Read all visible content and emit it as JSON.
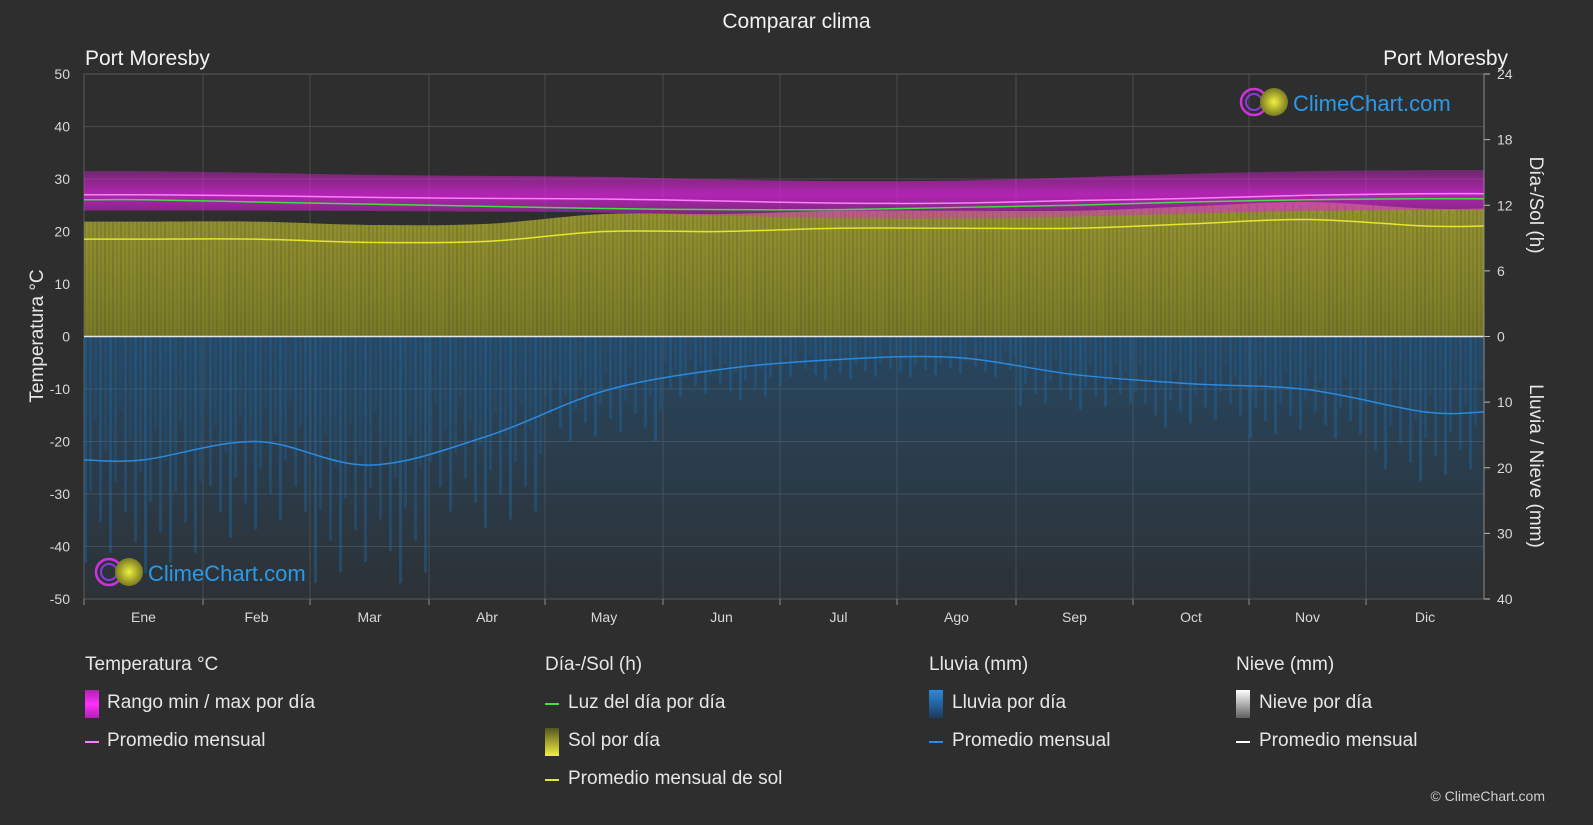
{
  "title": "Comparar clima",
  "city_left": "Port Moresby",
  "city_right": "Port Moresby",
  "watermark": "ClimeChart.com",
  "copyright": "© ClimeChart.com",
  "colors": {
    "temp_range": "#e020e0",
    "temp_avg": "#ff80ff",
    "daylight": "#44dd44",
    "sun_fill": "#8c8c2a",
    "sun_avg": "#e6e62a",
    "rain_fill": "#1e6aa8",
    "rain_avg": "#2a8ae0",
    "snow_avg": "#ffffff",
    "brand": "#2a9ae8"
  },
  "chart_data": {
    "type": "line",
    "months": [
      "Ene",
      "Feb",
      "Mar",
      "Abr",
      "May",
      "Jun",
      "Jul",
      "Ago",
      "Sep",
      "Oct",
      "Nov",
      "Dic"
    ],
    "y_left": {
      "label": "Temperatura °C",
      "range": [
        -50,
        50
      ],
      "ticks": [
        "50",
        "40",
        "30",
        "20",
        "10",
        "0",
        "-10",
        "-20",
        "-30",
        "-40",
        "-50"
      ]
    },
    "y_right_top": {
      "label": "Día-/Sol (h)",
      "range": [
        0,
        24
      ],
      "ticks": [
        "24",
        "18",
        "12",
        "6",
        "0"
      ]
    },
    "y_right_bottom": {
      "label": "Lluvia / Nieve (mm)",
      "range": [
        0,
        40
      ],
      "ticks": [
        "0",
        "10",
        "20",
        "30",
        "40"
      ]
    },
    "series": [
      {
        "name": "Promedio mensual",
        "group": "temperature",
        "unit": "°C",
        "values": [
          27.0,
          26.8,
          26.5,
          26.3,
          26.2,
          25.8,
          25.4,
          25.4,
          25.9,
          26.3,
          26.9,
          27.2
        ]
      },
      {
        "name": "Rango min / max por día",
        "group": "temperature",
        "unit": "°C",
        "min": [
          24.0,
          24.0,
          23.9,
          23.8,
          23.6,
          23.0,
          22.5,
          22.4,
          22.8,
          23.4,
          23.9,
          24.1
        ],
        "max": [
          31.5,
          31.2,
          30.8,
          30.6,
          30.4,
          29.9,
          29.6,
          29.7,
          30.3,
          31.0,
          31.5,
          31.7
        ]
      },
      {
        "name": "Luz del día por día",
        "group": "sun",
        "unit": "h",
        "values": [
          12.5,
          12.3,
          12.1,
          11.9,
          11.7,
          11.6,
          11.6,
          11.8,
          12.0,
          12.3,
          12.5,
          12.6
        ]
      },
      {
        "name": "Promedio mensual de sol",
        "group": "sun",
        "unit": "h",
        "values": [
          8.9,
          8.9,
          8.6,
          8.7,
          9.6,
          9.6,
          9.9,
          9.9,
          9.9,
          10.3,
          10.7,
          10.1
        ]
      },
      {
        "name": "Promedio mensual",
        "group": "rain",
        "unit": "mm",
        "values": [
          18.8,
          16.0,
          19.6,
          15.2,
          8.3,
          5.0,
          3.5,
          3.2,
          5.8,
          7.2,
          8.1,
          11.5
        ]
      }
    ]
  },
  "legend": {
    "temperature": {
      "title": "Temperatura °C",
      "items": [
        "Rango min / max por día",
        "Promedio mensual"
      ]
    },
    "sun": {
      "title": "Día-/Sol (h)",
      "items": [
        "Luz del día por día",
        "Sol por día",
        "Promedio mensual de sol"
      ]
    },
    "rain": {
      "title": "Lluvia (mm)",
      "items": [
        "Lluvia por día",
        "Promedio mensual"
      ]
    },
    "snow": {
      "title": "Nieve (mm)",
      "items": [
        "Nieve por día",
        "Promedio mensual"
      ]
    }
  }
}
